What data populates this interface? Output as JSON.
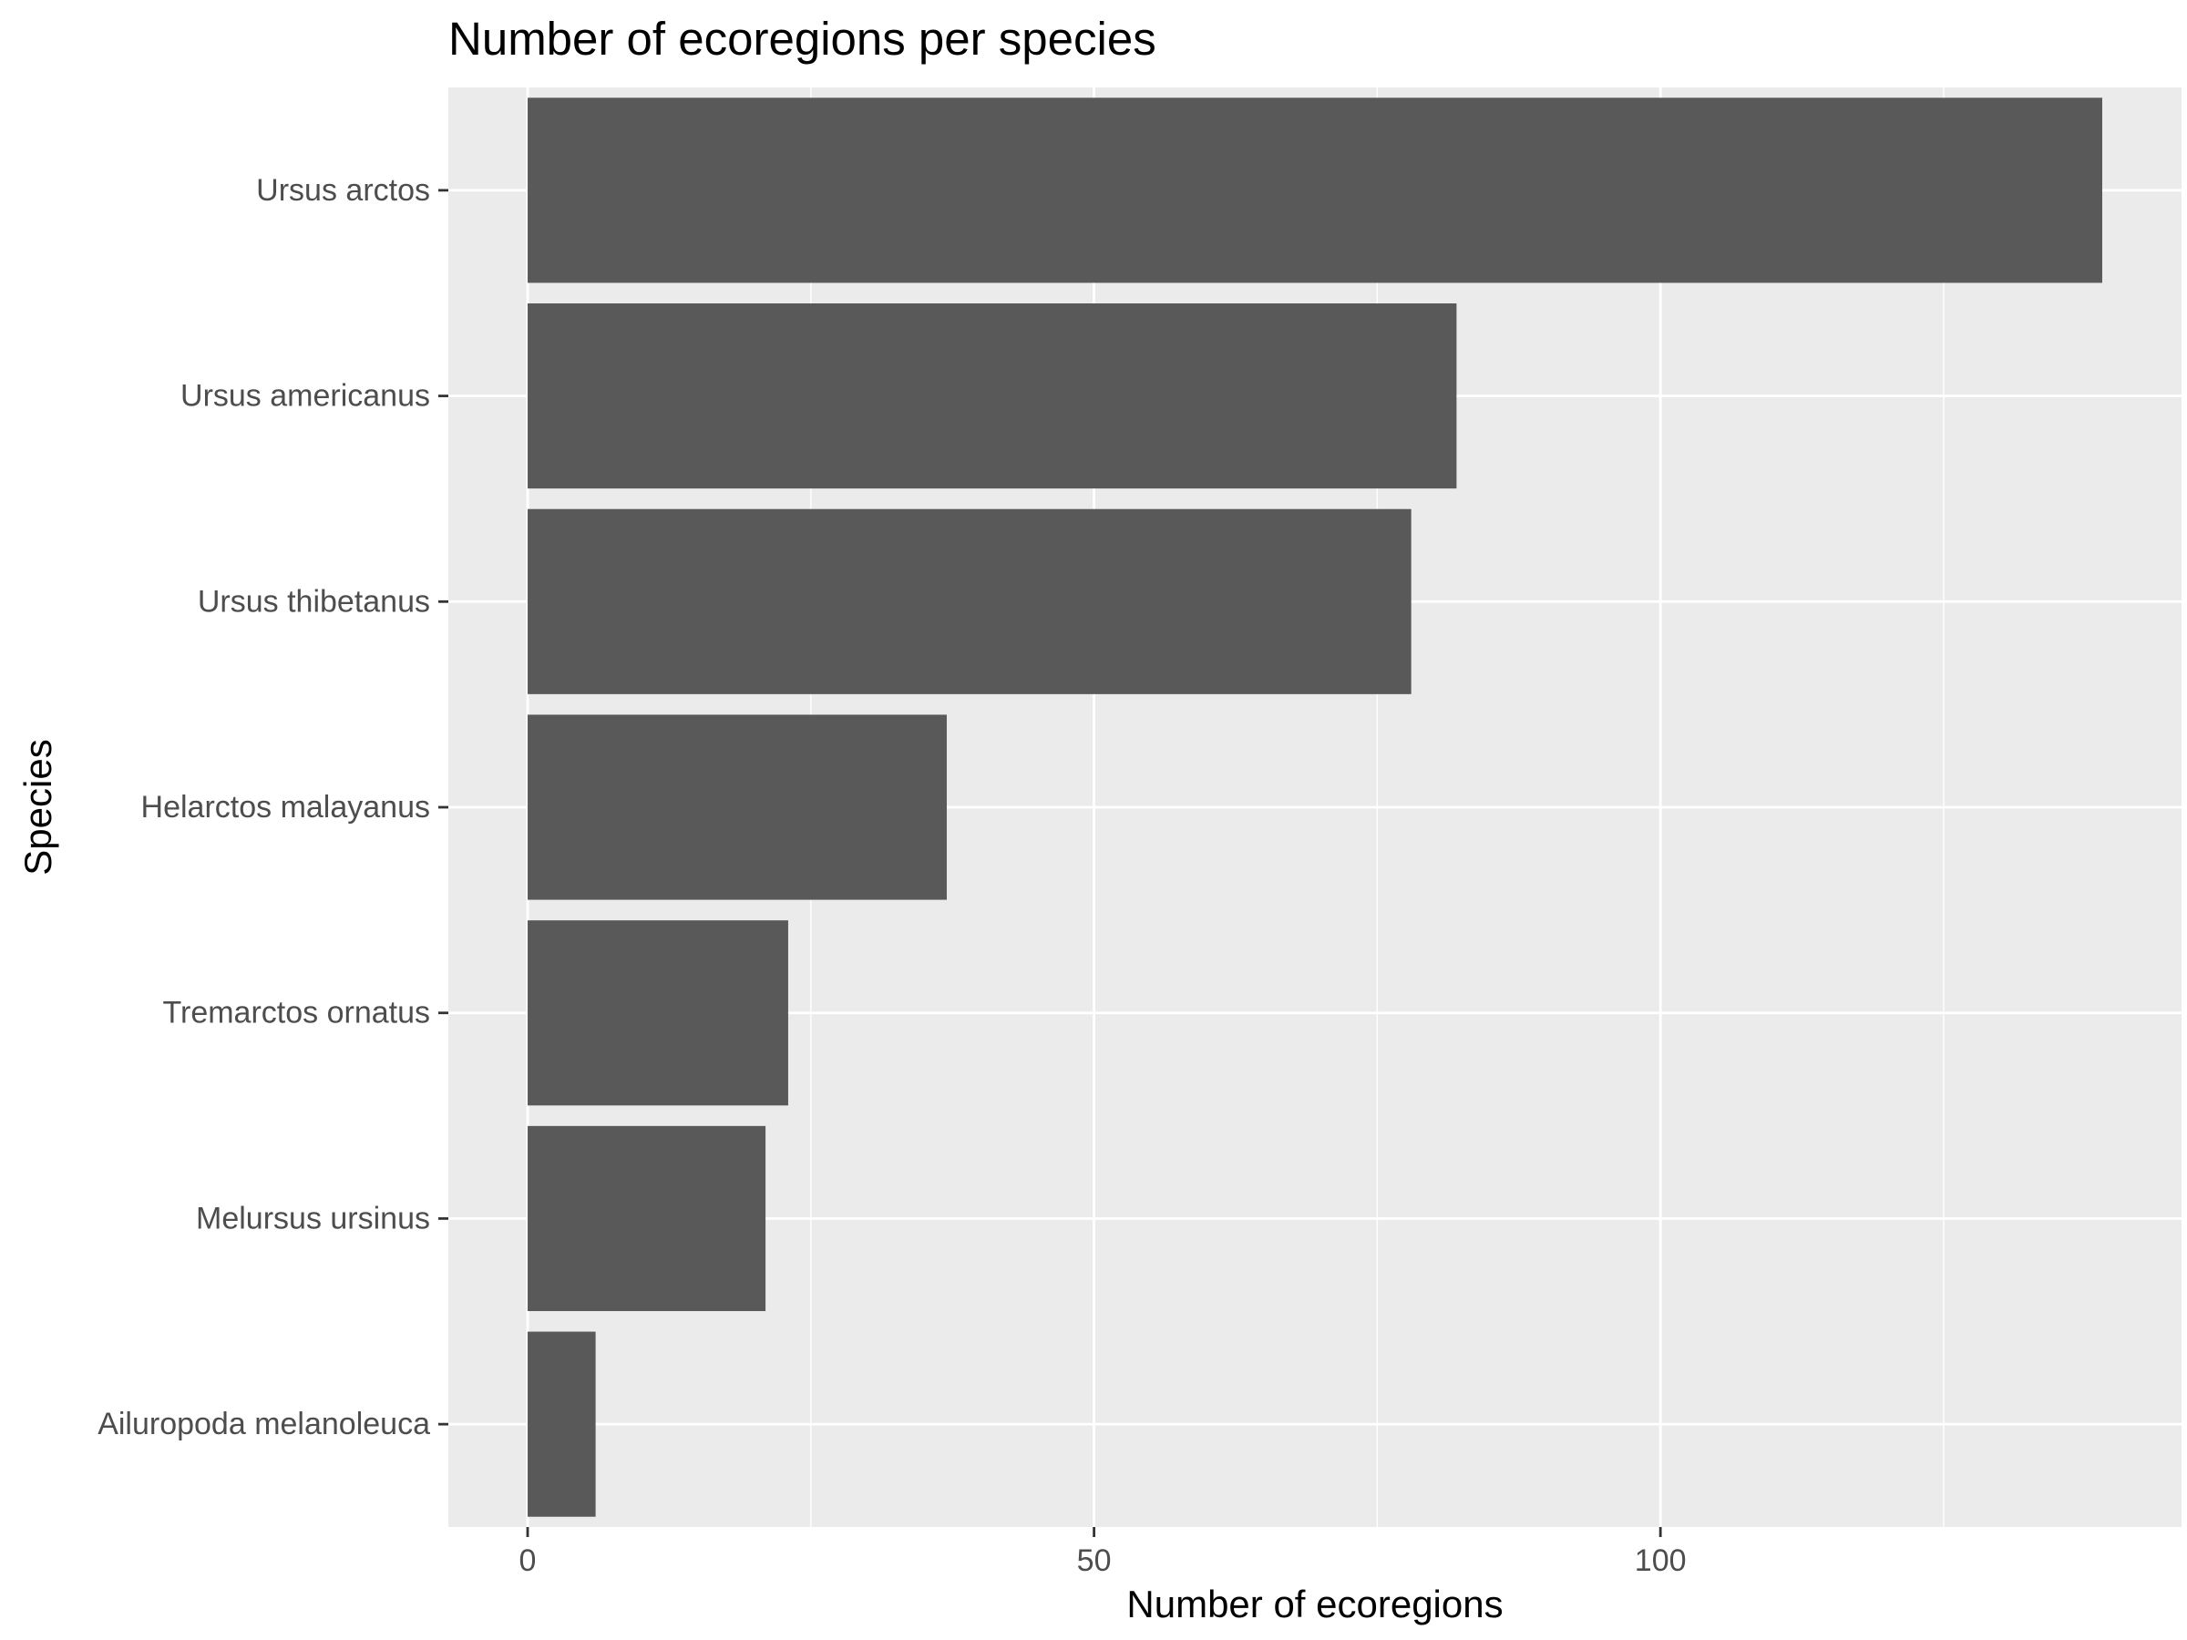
{
  "chart_data": {
    "type": "bar",
    "orientation": "horizontal",
    "title": "Number of ecoregions per species",
    "xlabel": "Number of ecoregions",
    "ylabel": "Species",
    "categories": [
      "Ursus arctos",
      "Ursus americanus",
      "Ursus thibetanus",
      "Helarctos malayanus",
      "Tremarctos ornatus",
      "Melursus ursinus",
      "Ailuropoda melanoleuca"
    ],
    "values": [
      139,
      82,
      78,
      37,
      23,
      21,
      6
    ],
    "xlim": [
      -7,
      146
    ],
    "x_ticks": [
      0,
      50,
      100
    ],
    "x_tick_labels": [
      "0",
      "50",
      "100"
    ],
    "x_minor_ticks": [
      25,
      75,
      125
    ],
    "grid": true,
    "legend": "none",
    "colors": {
      "bar": "#595959",
      "panel_background": "#ebebeb",
      "gridline": "#ffffff",
      "tick_label": "#4d4d4d",
      "text": "#000000"
    }
  }
}
